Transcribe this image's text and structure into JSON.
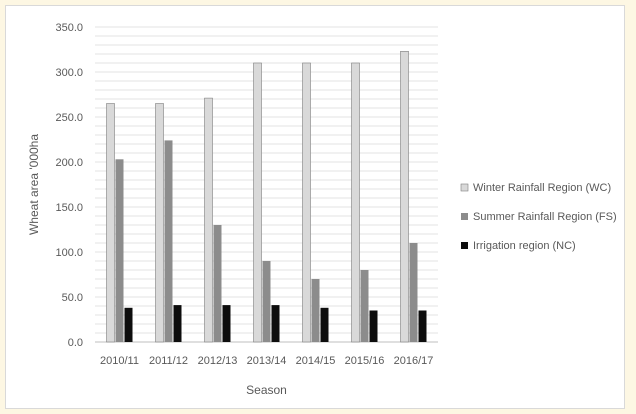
{
  "chart_data": {
    "type": "bar",
    "title": "",
    "xlabel": "Season",
    "ylabel": "Wheat area '000ha",
    "categories": [
      "2010/11",
      "2011/12",
      "2012/13",
      "2013/14",
      "2014/15",
      "2015/16",
      "2016/17"
    ],
    "ylim": [
      0,
      350
    ],
    "yticks": [
      "0.0",
      "50.0",
      "100.0",
      "150.0",
      "200.0",
      "250.0",
      "300.0",
      "350.0"
    ],
    "grid": true,
    "legend_position": "right",
    "series": [
      {
        "name": "Winter Rainfall Region (WC)",
        "color": "#d9d9d9",
        "values": [
          265,
          265,
          271,
          310,
          310,
          310,
          323
        ]
      },
      {
        "name": "Summer Rainfall Region (FS)",
        "color": "#8c8c8c",
        "values": [
          203,
          224,
          130,
          90,
          70,
          80,
          110
        ]
      },
      {
        "name": "Irrigation region (NC)",
        "color": "#0d0d0d",
        "values": [
          38,
          41,
          41,
          41,
          38,
          35,
          35
        ]
      }
    ]
  }
}
